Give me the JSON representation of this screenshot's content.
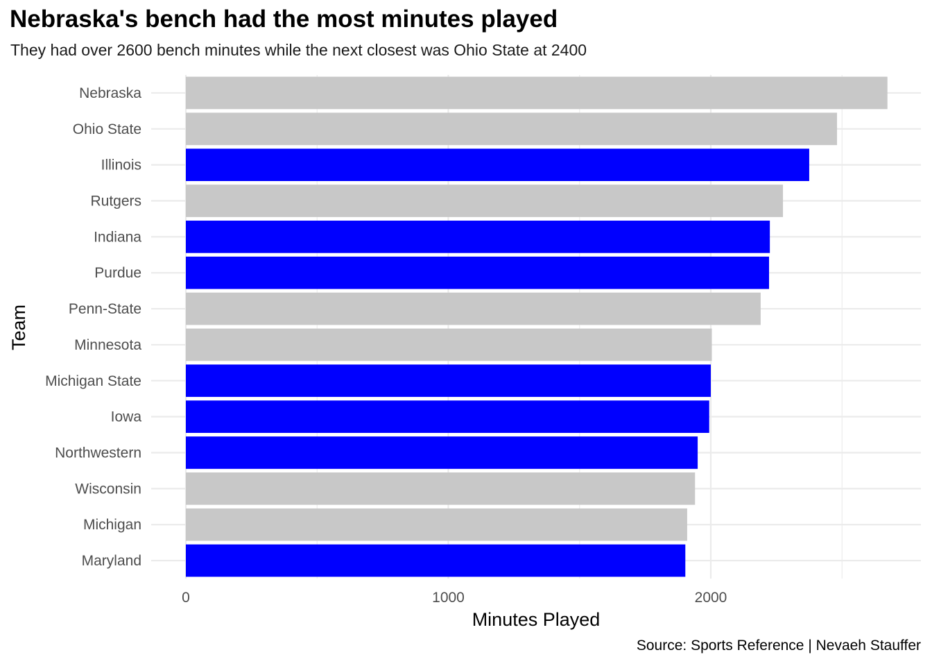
{
  "chart_data": {
    "type": "bar",
    "orientation": "horizontal",
    "title": "Nebraska's bench had the most minutes played",
    "subtitle": "They had over 2600 bench minutes while the next closest was Ohio State at 2400",
    "caption": "Source: Sports Reference | Nevaeh Stauffer",
    "xlabel": "Minutes Played",
    "ylabel": "Team",
    "xlim": [
      0,
      2820
    ],
    "xticks": [
      0,
      1000,
      2000
    ],
    "xtick_labels": [
      "0",
      "1000",
      "2000"
    ],
    "grid": true,
    "colors": {
      "highlight": "#0000ff",
      "default": "#c8c8c8"
    },
    "bars": [
      {
        "team": "Nebraska",
        "value": 2673,
        "highlight": false
      },
      {
        "team": "Ohio State",
        "value": 2481,
        "highlight": false
      },
      {
        "team": "Illinois",
        "value": 2375,
        "highlight": true
      },
      {
        "team": "Rutgers",
        "value": 2275,
        "highlight": false
      },
      {
        "team": "Indiana",
        "value": 2225,
        "highlight": true
      },
      {
        "team": "Purdue",
        "value": 2222,
        "highlight": true
      },
      {
        "team": "Penn-State",
        "value": 2190,
        "highlight": false
      },
      {
        "team": "Minnesota",
        "value": 2004,
        "highlight": false
      },
      {
        "team": "Michigan State",
        "value": 2000,
        "highlight": true
      },
      {
        "team": "Iowa",
        "value": 1994,
        "highlight": true
      },
      {
        "team": "Northwestern",
        "value": 1950,
        "highlight": true
      },
      {
        "team": "Wisconsin",
        "value": 1940,
        "highlight": false
      },
      {
        "team": "Michigan",
        "value": 1910,
        "highlight": false
      },
      {
        "team": "Maryland",
        "value": 1903,
        "highlight": true
      }
    ]
  }
}
